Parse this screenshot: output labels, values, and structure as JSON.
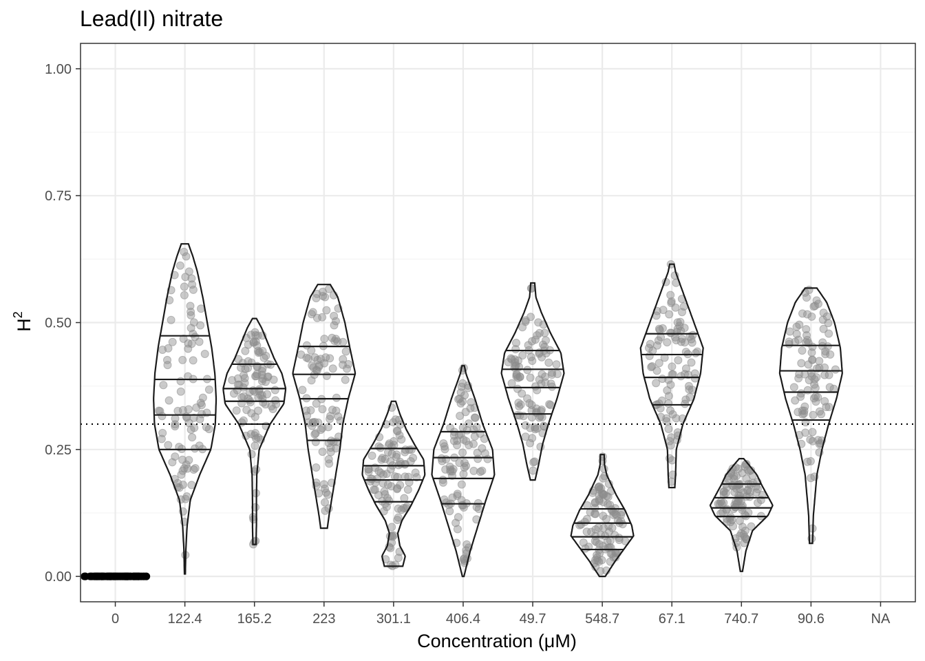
{
  "chart_data": {
    "type": "violin",
    "title": "Lead(II) nitrate",
    "xlabel": "Concentration (μM)",
    "ylabel_base": "H",
    "ylabel_sup": "2",
    "ylim": [
      -0.05,
      1.05
    ],
    "yticks": [
      0.0,
      0.25,
      0.5,
      0.75,
      1.0
    ],
    "ytick_labels": [
      "0.00",
      "0.25",
      "0.50",
      "0.75",
      "1.00"
    ],
    "reference_line": 0.3,
    "grid": true,
    "categories": [
      "0",
      "122.4",
      "165.2",
      "223",
      "301.1",
      "406.4",
      "49.7",
      "548.7",
      "67.1",
      "740.7",
      "90.6",
      "NA"
    ],
    "series": [
      {
        "category": "0",
        "min": 0.0,
        "max": 0.0,
        "quantiles": [],
        "constant": true,
        "n": 100
      },
      {
        "category": "122.4",
        "min": 0.005,
        "max": 0.655,
        "quantiles": [
          0.25,
          0.318,
          0.388,
          0.474
        ],
        "density": [
          [
            0.005,
            0.01
          ],
          [
            0.05,
            0.02
          ],
          [
            0.1,
            0.05
          ],
          [
            0.15,
            0.12
          ],
          [
            0.2,
            0.33
          ],
          [
            0.25,
            0.58
          ],
          [
            0.3,
            0.68
          ],
          [
            0.35,
            0.7
          ],
          [
            0.4,
            0.67
          ],
          [
            0.45,
            0.6
          ],
          [
            0.5,
            0.5
          ],
          [
            0.55,
            0.4
          ],
          [
            0.6,
            0.28
          ],
          [
            0.63,
            0.18
          ],
          [
            0.655,
            0.08
          ]
        ]
      },
      {
        "category": "165.2",
        "min": 0.063,
        "max": 0.508,
        "quantiles": [
          0.3,
          0.345,
          0.37,
          0.418
        ],
        "density": [
          [
            0.063,
            0.04
          ],
          [
            0.1,
            0.05
          ],
          [
            0.15,
            0.05
          ],
          [
            0.2,
            0.06
          ],
          [
            0.25,
            0.12
          ],
          [
            0.3,
            0.4
          ],
          [
            0.34,
            0.75
          ],
          [
            0.37,
            0.8
          ],
          [
            0.4,
            0.7
          ],
          [
            0.43,
            0.5
          ],
          [
            0.46,
            0.34
          ],
          [
            0.49,
            0.18
          ],
          [
            0.508,
            0.05
          ]
        ]
      },
      {
        "category": "223",
        "min": 0.095,
        "max": 0.575,
        "quantiles": [
          0.268,
          0.35,
          0.398,
          0.453
        ],
        "density": [
          [
            0.095,
            0.08
          ],
          [
            0.12,
            0.12
          ],
          [
            0.15,
            0.18
          ],
          [
            0.2,
            0.28
          ],
          [
            0.25,
            0.38
          ],
          [
            0.3,
            0.45
          ],
          [
            0.35,
            0.58
          ],
          [
            0.4,
            0.75
          ],
          [
            0.45,
            0.62
          ],
          [
            0.5,
            0.5
          ],
          [
            0.55,
            0.33
          ],
          [
            0.575,
            0.15
          ]
        ]
      },
      {
        "category": "301.1",
        "min": 0.02,
        "max": 0.345,
        "quantiles": [
          0.147,
          0.19,
          0.218,
          0.252
        ],
        "density": [
          [
            0.02,
            0.22
          ],
          [
            0.04,
            0.28
          ],
          [
            0.06,
            0.15
          ],
          [
            0.085,
            0.1
          ],
          [
            0.11,
            0.2
          ],
          [
            0.14,
            0.42
          ],
          [
            0.17,
            0.6
          ],
          [
            0.2,
            0.75
          ],
          [
            0.23,
            0.72
          ],
          [
            0.26,
            0.5
          ],
          [
            0.29,
            0.3
          ],
          [
            0.32,
            0.15
          ],
          [
            0.345,
            0.05
          ]
        ]
      },
      {
        "category": "406.4",
        "min": 0.0,
        "max": 0.415,
        "quantiles": [
          0.143,
          0.193,
          0.234,
          0.285
        ],
        "density": [
          [
            0.0,
            0.02
          ],
          [
            0.05,
            0.18
          ],
          [
            0.1,
            0.38
          ],
          [
            0.15,
            0.58
          ],
          [
            0.2,
            0.8
          ],
          [
            0.25,
            0.75
          ],
          [
            0.3,
            0.5
          ],
          [
            0.35,
            0.3
          ],
          [
            0.4,
            0.07
          ],
          [
            0.415,
            0.03
          ]
        ]
      },
      {
        "category": "49.7",
        "min": 0.19,
        "max": 0.578,
        "quantiles": [
          0.32,
          0.372,
          0.408,
          0.445
        ],
        "density": [
          [
            0.19,
            0.06
          ],
          [
            0.22,
            0.15
          ],
          [
            0.26,
            0.25
          ],
          [
            0.3,
            0.4
          ],
          [
            0.35,
            0.62
          ],
          [
            0.4,
            0.8
          ],
          [
            0.44,
            0.72
          ],
          [
            0.48,
            0.45
          ],
          [
            0.52,
            0.22
          ],
          [
            0.55,
            0.08
          ],
          [
            0.578,
            0.05
          ]
        ]
      },
      {
        "category": "548.7",
        "min": 0.0,
        "max": 0.24,
        "quantiles": [
          0.053,
          0.078,
          0.105,
          0.133
        ],
        "density": [
          [
            0.0,
            0.08
          ],
          [
            0.03,
            0.35
          ],
          [
            0.06,
            0.65
          ],
          [
            0.08,
            0.85
          ],
          [
            0.1,
            0.8
          ],
          [
            0.13,
            0.62
          ],
          [
            0.16,
            0.38
          ],
          [
            0.2,
            0.12
          ],
          [
            0.22,
            0.06
          ],
          [
            0.24,
            0.05
          ]
        ]
      },
      {
        "category": "67.1",
        "min": 0.175,
        "max": 0.615,
        "quantiles": [
          0.338,
          0.392,
          0.437,
          0.478
        ],
        "density": [
          [
            0.175,
            0.08
          ],
          [
            0.2,
            0.1
          ],
          [
            0.25,
            0.12
          ],
          [
            0.3,
            0.3
          ],
          [
            0.35,
            0.6
          ],
          [
            0.4,
            0.78
          ],
          [
            0.45,
            0.85
          ],
          [
            0.5,
            0.6
          ],
          [
            0.55,
            0.35
          ],
          [
            0.6,
            0.1
          ],
          [
            0.615,
            0.06
          ]
        ]
      },
      {
        "category": "740.7",
        "min": 0.01,
        "max": 0.232,
        "quantiles": [
          0.118,
          0.135,
          0.155,
          0.182
        ],
        "density": [
          [
            0.01,
            0.03
          ],
          [
            0.05,
            0.12
          ],
          [
            0.09,
            0.3
          ],
          [
            0.12,
            0.72
          ],
          [
            0.14,
            0.85
          ],
          [
            0.16,
            0.7
          ],
          [
            0.18,
            0.55
          ],
          [
            0.2,
            0.42
          ],
          [
            0.22,
            0.2
          ],
          [
            0.232,
            0.06
          ]
        ]
      },
      {
        "category": "90.6",
        "min": 0.065,
        "max": 0.568,
        "quantiles": [
          0.308,
          0.363,
          0.405,
          0.455
        ],
        "density": [
          [
            0.065,
            0.04
          ],
          [
            0.12,
            0.06
          ],
          [
            0.2,
            0.15
          ],
          [
            0.25,
            0.28
          ],
          [
            0.3,
            0.45
          ],
          [
            0.35,
            0.65
          ],
          [
            0.4,
            0.8
          ],
          [
            0.45,
            0.75
          ],
          [
            0.5,
            0.6
          ],
          [
            0.54,
            0.4
          ],
          [
            0.568,
            0.15
          ]
        ]
      },
      {
        "category": "NA",
        "empty": true
      }
    ]
  },
  "colors": {
    "violin_stroke": "#1a1a1a",
    "point_fill": "#8c8c8c",
    "grid_major": "#ebebeb",
    "grid_minor": "#f5f5f5",
    "panel_border": "#333333",
    "reference_line": "#000000"
  }
}
